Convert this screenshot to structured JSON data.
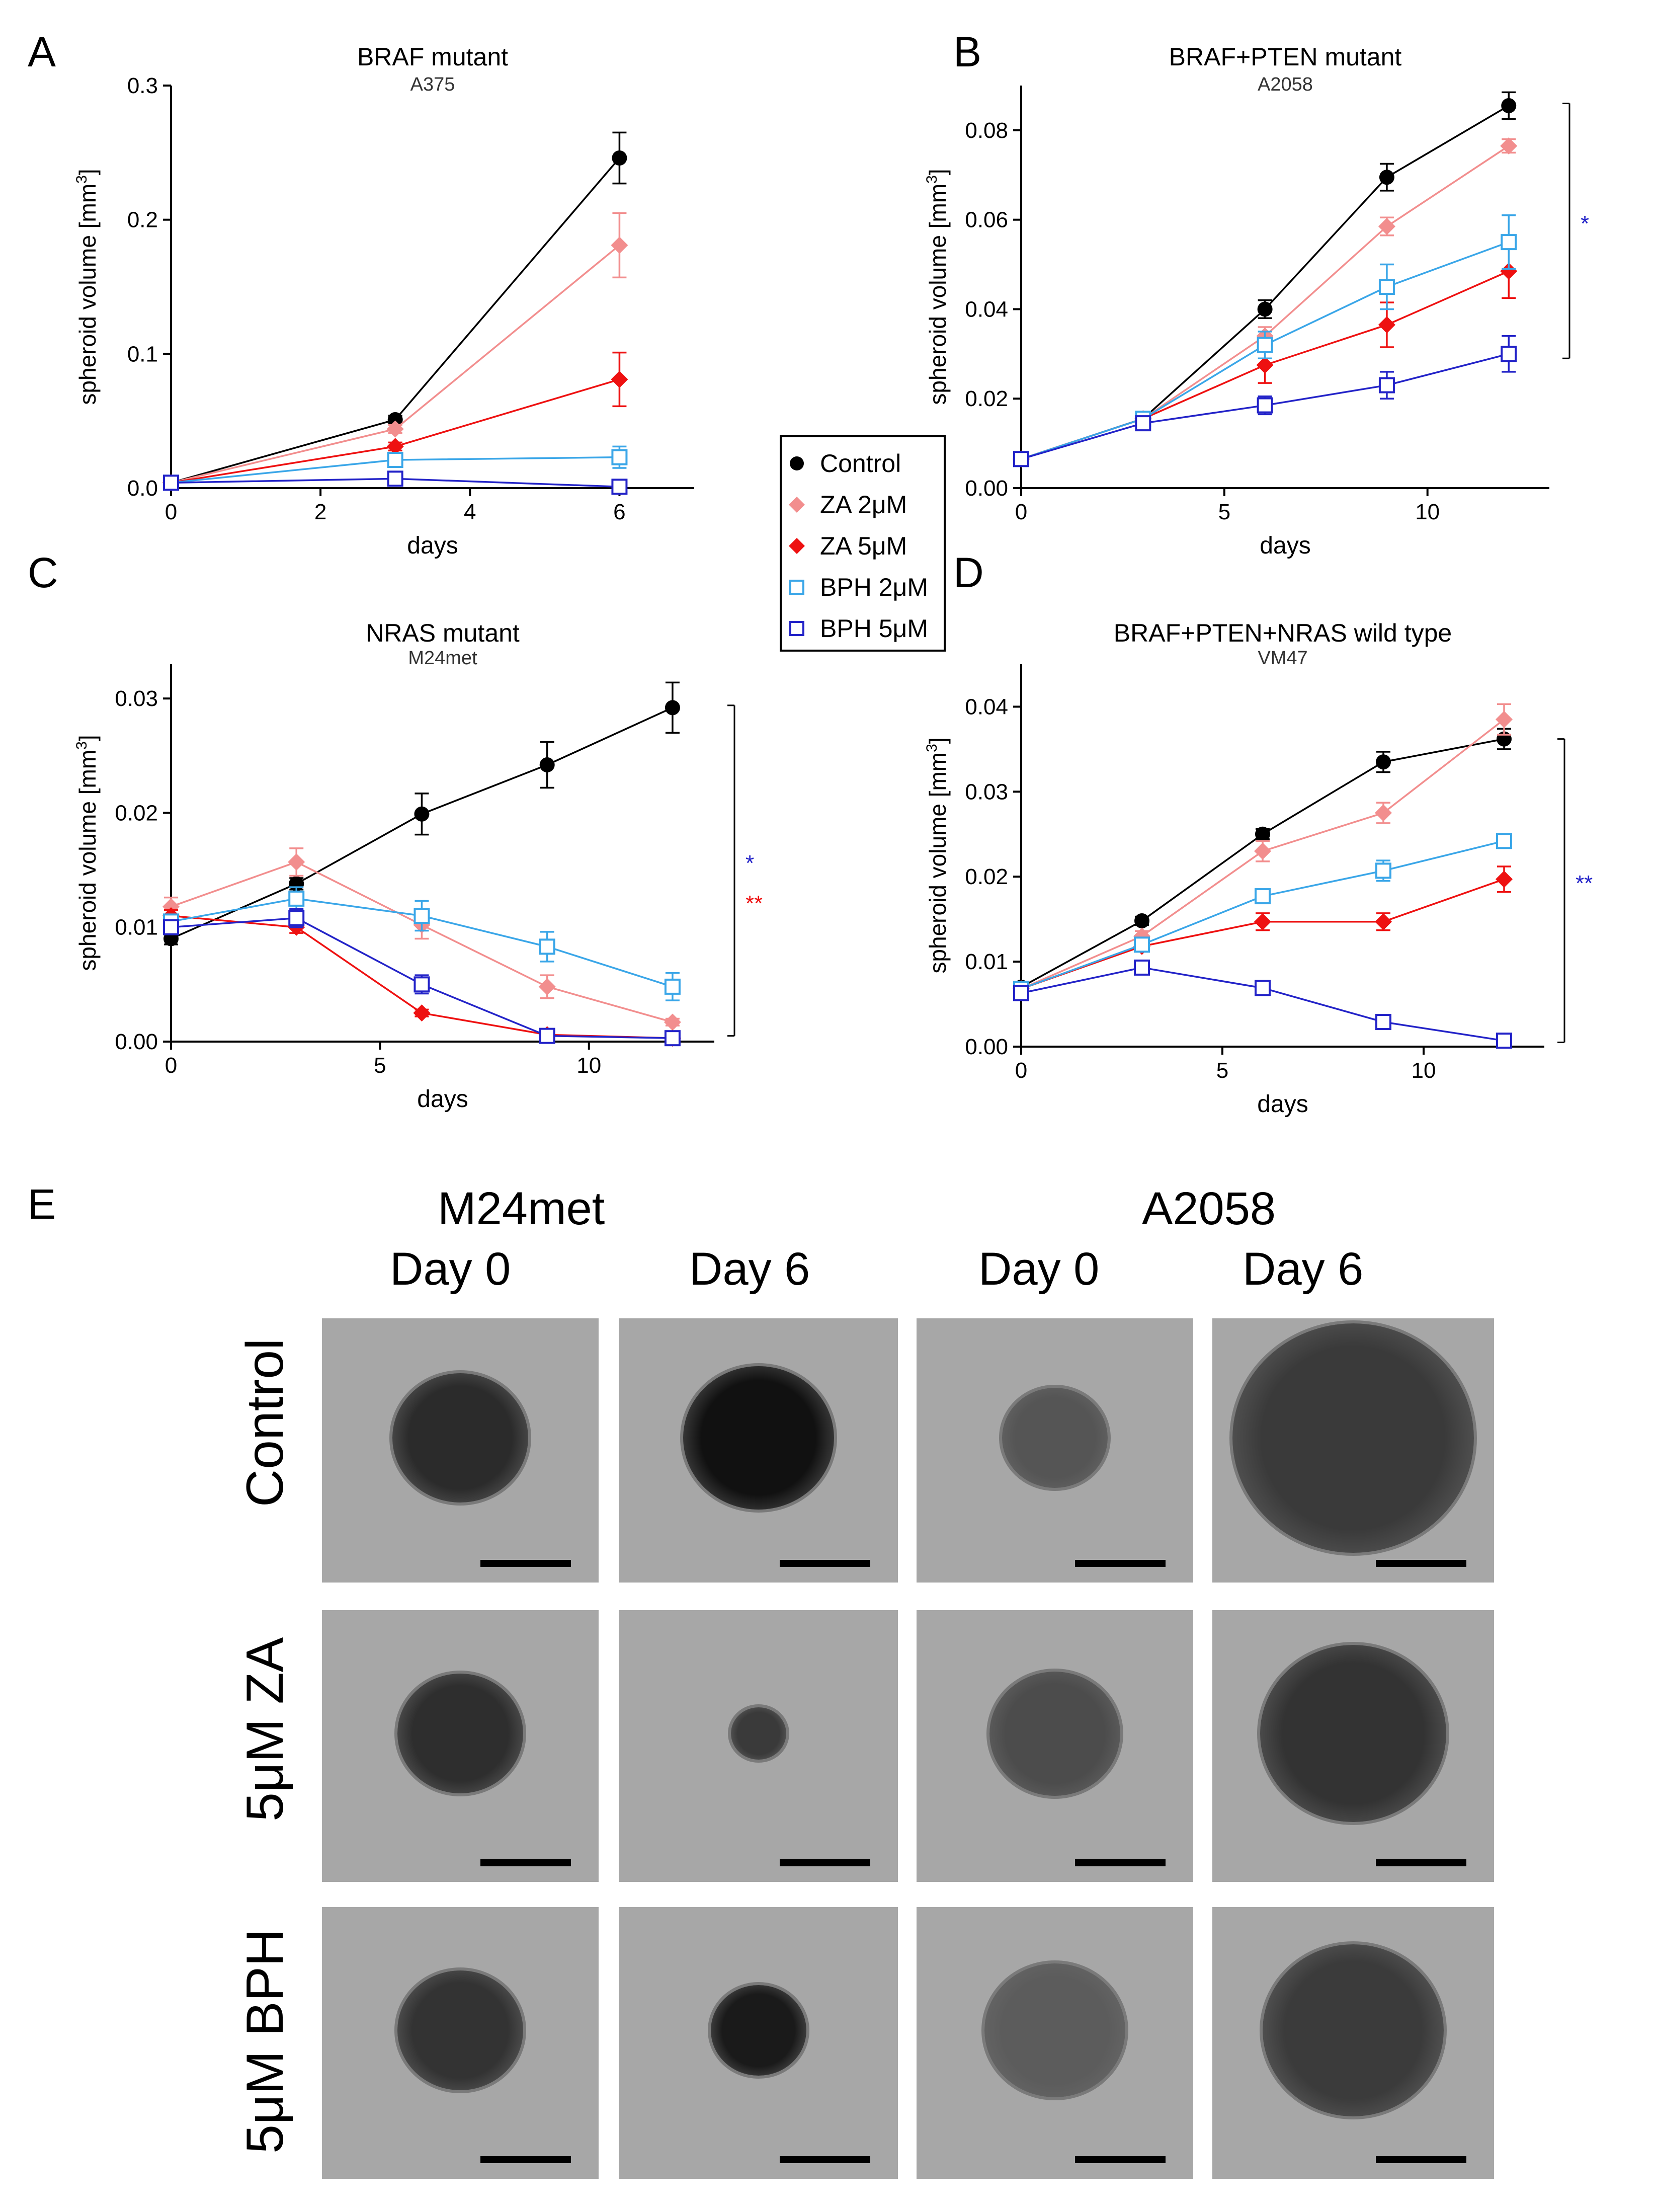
{
  "panel_letters": {
    "a": "A",
    "b": "B",
    "c": "C",
    "d": "D",
    "e": "E"
  },
  "legend": [
    {
      "label": "Control",
      "color": "#000000",
      "marker": "circle-filled"
    },
    {
      "label": "ZA 2μM",
      "color": "#f28e8e",
      "marker": "diamond-filled"
    },
    {
      "label": "ZA 5μM",
      "color": "#ee1111",
      "marker": "diamond-filled"
    },
    {
      "label": "BPH 2μM",
      "color": "#3aa6e8",
      "marker": "square-open"
    },
    {
      "label": "BPH 5μM",
      "color": "#2323c8",
      "marker": "square-open"
    }
  ],
  "chart_data": [
    {
      "type": "line",
      "title": "BRAF mutant",
      "subtitle": "A375",
      "xlabel": "days",
      "ylabel": "spheroid volume [mm",
      "ylabel_sup": "3",
      "ylabel_end": "]",
      "xlim": [
        0,
        7
      ],
      "ylim": [
        0,
        0.3
      ],
      "xticks": [
        0,
        2,
        4,
        6
      ],
      "xticklabels": [
        "0",
        "2",
        "4",
        "6"
      ],
      "yticks": [
        0,
        0.1,
        0.2,
        0.3
      ],
      "yticklabels": [
        "0.0",
        "0.1",
        "0.2",
        "0.3"
      ],
      "x": [
        0,
        3,
        6
      ],
      "series": [
        {
          "name": "Control",
          "values": [
            0.004,
            0.051,
            0.246
          ],
          "err": [
            0,
            0.003,
            0.019
          ]
        },
        {
          "name": "ZA 2μM",
          "values": [
            0.004,
            0.044,
            0.181
          ],
          "err": [
            0,
            0.003,
            0.024
          ]
        },
        {
          "name": "ZA 5μM",
          "values": [
            0.004,
            0.031,
            0.081
          ],
          "err": [
            0,
            0.003,
            0.02
          ]
        },
        {
          "name": "BPH 2μM",
          "values": [
            0.004,
            0.021,
            0.023
          ],
          "err": [
            0,
            0.003,
            0.008
          ]
        },
        {
          "name": "BPH 5μM",
          "values": [
            0.004,
            0.007,
            0.001
          ],
          "err": [
            0,
            0.001,
            0.001
          ]
        }
      ],
      "significance": []
    },
    {
      "type": "line",
      "title": "BRAF+PTEN mutant",
      "subtitle": "A2058",
      "xlabel": "days",
      "ylabel": "spheroid volume [mm",
      "ylabel_sup": "3",
      "ylabel_end": "]",
      "xlim": [
        0,
        13
      ],
      "ylim": [
        0,
        0.09
      ],
      "xticks": [
        0,
        5,
        10
      ],
      "xticklabels": [
        "0",
        "5",
        "10"
      ],
      "yticks": [
        0,
        0.02,
        0.04,
        0.06,
        0.08
      ],
      "yticklabels": [
        "0.00",
        "0.02",
        "0.04",
        "0.06",
        "0.08"
      ],
      "x": [
        0,
        3,
        6,
        9,
        12
      ],
      "series": [
        {
          "name": "Control",
          "values": [
            0.0065,
            0.0155,
            0.04,
            0.0695,
            0.0855
          ],
          "err": [
            0.0005,
            0.001,
            0.002,
            0.003,
            0.003
          ]
        },
        {
          "name": "ZA 2μM",
          "values": [
            0.0065,
            0.0155,
            0.034,
            0.0585,
            0.0765
          ],
          "err": [
            0.0005,
            0.001,
            0.002,
            0.002,
            0.0015
          ]
        },
        {
          "name": "ZA 5μM",
          "values": [
            0.0065,
            0.0155,
            0.0275,
            0.0365,
            0.0485
          ],
          "err": [
            0.0005,
            0.001,
            0.004,
            0.005,
            0.006
          ]
        },
        {
          "name": "BPH 2μM",
          "values": [
            0.0065,
            0.0155,
            0.032,
            0.045,
            0.055
          ],
          "err": [
            0.0005,
            0.001,
            0.003,
            0.005,
            0.006
          ]
        },
        {
          "name": "BPH 5μM",
          "values": [
            0.0065,
            0.0145,
            0.0185,
            0.023,
            0.03
          ],
          "err": [
            0.0005,
            0.001,
            0.002,
            0.003,
            0.004
          ]
        }
      ],
      "significance": [
        {
          "text": "*",
          "color": "#2323c8"
        }
      ]
    },
    {
      "type": "line",
      "title": "NRAS mutant",
      "subtitle": "M24met",
      "xlabel": "days",
      "ylabel": "spheroid volume [mm",
      "ylabel_sup": "3",
      "ylabel_end": "]",
      "xlim": [
        0,
        13
      ],
      "ylim": [
        0,
        0.033
      ],
      "xticks": [
        0,
        5,
        10
      ],
      "xticklabels": [
        "0",
        "5",
        "10"
      ],
      "yticks": [
        0,
        0.01,
        0.02,
        0.03
      ],
      "yticklabels": [
        "0.00",
        "0.01",
        "0.02",
        "0.03"
      ],
      "x": [
        0,
        3,
        6,
        9,
        12
      ],
      "series": [
        {
          "name": "Control",
          "values": [
            0.009,
            0.0138,
            0.0199,
            0.0242,
            0.0292
          ],
          "err": [
            0.0005,
            0.0005,
            0.0018,
            0.002,
            0.0022
          ]
        },
        {
          "name": "ZA 2μM",
          "values": [
            0.0118,
            0.0157,
            0.0102,
            0.0048,
            0.0017
          ],
          "err": [
            0.0008,
            0.0012,
            0.0012,
            0.001,
            0.0003
          ]
        },
        {
          "name": "ZA 5μM",
          "values": [
            0.011,
            0.01,
            0.0025,
            0.0006,
            0.0003
          ],
          "err": [
            0.0005,
            0.0005,
            0.0003,
            0.0002,
            0.0001
          ]
        },
        {
          "name": "BPH 2μM",
          "values": [
            0.0105,
            0.0125,
            0.011,
            0.0083,
            0.0048
          ],
          "err": [
            0.0005,
            0.001,
            0.0013,
            0.0013,
            0.0012
          ]
        },
        {
          "name": "BPH 5μM",
          "values": [
            0.01,
            0.0108,
            0.005,
            0.0005,
            0.0003
          ],
          "err": [
            0.0005,
            0.0008,
            0.0008,
            0.0002,
            0.0001
          ]
        }
      ],
      "significance": [
        {
          "text": "*",
          "color": "#2323c8"
        },
        {
          "text": "**",
          "color": "#ee1111"
        }
      ]
    },
    {
      "type": "line",
      "title": "BRAF+PTEN+NRAS wild type",
      "subtitle": "VM47",
      "xlabel": "days",
      "ylabel": "spheroid volume [mm",
      "ylabel_sup": "3",
      "ylabel_end": "]",
      "xlim": [
        0,
        13
      ],
      "ylim": [
        0,
        0.045
      ],
      "xticks": [
        0,
        5,
        10
      ],
      "xticklabels": [
        "0",
        "5",
        "10"
      ],
      "yticks": [
        0,
        0.01,
        0.02,
        0.03,
        0.04
      ],
      "yticklabels": [
        "0.00",
        "0.01",
        "0.02",
        "0.03",
        "0.04"
      ],
      "x": [
        0,
        3,
        6,
        9,
        12
      ],
      "series": [
        {
          "name": "Control",
          "values": [
            0.007,
            0.0148,
            0.025,
            0.0335,
            0.0362
          ],
          "err": [
            0.0005,
            0.0005,
            0.0006,
            0.0012,
            0.0012
          ]
        },
        {
          "name": "ZA 2μM",
          "values": [
            0.0068,
            0.013,
            0.023,
            0.0275,
            0.0385
          ],
          "err": [
            0.0005,
            0.0006,
            0.0012,
            0.0012,
            0.0018
          ]
        },
        {
          "name": "ZA 5μM",
          "values": [
            0.0068,
            0.0118,
            0.0147,
            0.0147,
            0.0197
          ],
          "err": [
            0.0005,
            0.0005,
            0.001,
            0.001,
            0.0015
          ]
        },
        {
          "name": "BPH 2μM",
          "values": [
            0.0068,
            0.012,
            0.0177,
            0.0207,
            0.0242
          ],
          "err": [
            0.0005,
            0.0005,
            0.0006,
            0.0012,
            0.0008
          ]
        },
        {
          "name": "BPH 5μM",
          "values": [
            0.0063,
            0.0093,
            0.0069,
            0.0029,
            0.0007
          ],
          "err": [
            0.0005,
            0.0005,
            0.0006,
            0.0004,
            0.0002
          ]
        }
      ],
      "significance": [
        {
          "text": "**",
          "color": "#2323c8"
        }
      ]
    }
  ],
  "images": {
    "column_groups": [
      "M24met",
      "A2058"
    ],
    "days": [
      "Day 0",
      "Day 6",
      "Day 0",
      "Day 6"
    ],
    "rows": [
      "Control",
      "5μM ZA",
      "5μM BPH"
    ]
  }
}
